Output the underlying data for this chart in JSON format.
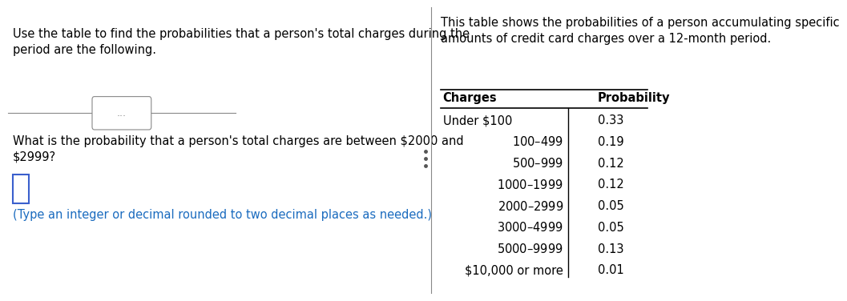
{
  "left_title": "Use the table to find the probabilities that a person's total charges during the\nperiod are the following.",
  "divider_label": "...",
  "question": "What is the probability that a person's total charges are between $2000 and\n$2999?",
  "hint": "(Type an integer or decimal rounded to two decimal places as needed.)",
  "right_title": "This table shows the probabilities of a person accumulating specific\namounts of credit card charges over a 12-month period.",
  "table_header_charges": "Charges",
  "table_header_prob": "Probability",
  "table_rows": [
    [
      "Under $100",
      "0.33"
    ],
    [
      "$100–$499",
      "0.19"
    ],
    [
      "$500–$999",
      "0.12"
    ],
    [
      "$1000–$1999",
      "0.12"
    ],
    [
      "$2000–$2999",
      "0.05"
    ],
    [
      "$3000–$4999",
      "0.05"
    ],
    [
      "$5000–$9999",
      "0.13"
    ],
    [
      "$10,000 or more",
      "0.01"
    ]
  ],
  "bg_color": "#ffffff",
  "text_color": "#000000",
  "hint_color": "#1a6bbf",
  "divider_color": "#888888",
  "table_line_color": "#000000",
  "input_box_color": "#3a5fcd",
  "font_size_main": 10.5,
  "font_size_table": 10.5,
  "font_size_header": 10.5
}
